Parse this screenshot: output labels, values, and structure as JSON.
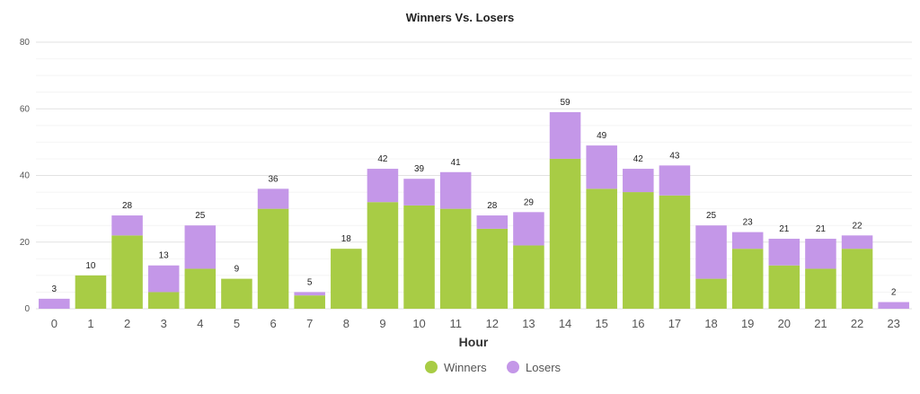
{
  "chart_data": {
    "type": "bar",
    "stacked": true,
    "title": "Winners Vs. Losers",
    "xlabel": "Hour",
    "ylabel": "",
    "ylim": [
      0,
      80
    ],
    "yticks": [
      0,
      20,
      40,
      60,
      80
    ],
    "grid": true,
    "legend_position": "bottom-center",
    "categories": [
      "0",
      "1",
      "2",
      "3",
      "4",
      "5",
      "6",
      "7",
      "8",
      "9",
      "10",
      "11",
      "12",
      "13",
      "14",
      "15",
      "16",
      "17",
      "18",
      "19",
      "20",
      "21",
      "22",
      "23"
    ],
    "series": [
      {
        "name": "Winners",
        "color": "#a8cc45",
        "values": [
          0,
          10,
          22,
          5,
          12,
          9,
          30,
          4,
          18,
          32,
          31,
          30,
          24,
          19,
          45,
          36,
          35,
          34,
          9,
          18,
          13,
          12,
          18,
          0
        ]
      },
      {
        "name": "Losers",
        "color": "#c497e8",
        "values": [
          3,
          0,
          6,
          8,
          13,
          0,
          6,
          1,
          0,
          10,
          8,
          11,
          4,
          10,
          14,
          13,
          7,
          9,
          16,
          5,
          8,
          9,
          4,
          2
        ]
      }
    ],
    "totals": [
      3,
      10,
      28,
      13,
      25,
      9,
      36,
      5,
      18,
      42,
      39,
      41,
      28,
      29,
      59,
      49,
      42,
      43,
      25,
      23,
      21,
      21,
      22,
      2
    ]
  }
}
